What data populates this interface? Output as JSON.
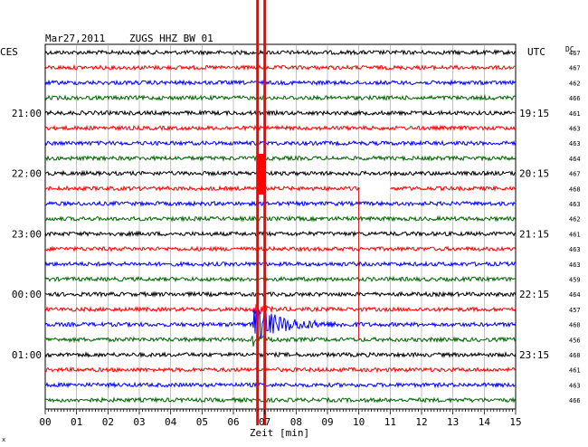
{
  "header": {
    "date": "Mar27,2011",
    "station": "ZUGS HHZ BW 01",
    "left_tz": "CES",
    "right_tz": "UTC",
    "dc_label": "DC"
  },
  "chart_data": {
    "type": "line",
    "title": "Mar27,2011   ZUGS HHZ BW 01",
    "xlabel": "Zeit [min]",
    "xlim": [
      0,
      15
    ],
    "x_ticks": [
      "00",
      "01",
      "02",
      "03",
      "04",
      "05",
      "06",
      "07",
      "08",
      "09",
      "10",
      "11",
      "12",
      "13",
      "14",
      "15"
    ],
    "grid": true,
    "left_time_labels": [
      {
        "trace": 4,
        "label": "21:00"
      },
      {
        "trace": 8,
        "label": "22:00"
      },
      {
        "trace": 12,
        "label": "23:00"
      },
      {
        "trace": 16,
        "label": "00:00"
      },
      {
        "trace": 20,
        "label": "01:00"
      }
    ],
    "right_time_labels": [
      {
        "trace": 4,
        "label": "19:15"
      },
      {
        "trace": 8,
        "label": "20:15"
      },
      {
        "trace": 12,
        "label": "21:15"
      },
      {
        "trace": 16,
        "label": "22:15"
      },
      {
        "trace": 20,
        "label": "23:15"
      }
    ],
    "trace_colors": [
      "#000000",
      "#ff0000",
      "#0000ff",
      "#006600"
    ],
    "dc_values": [
      "467",
      "467",
      "462",
      "466",
      "461",
      "463",
      "463",
      "464",
      "467",
      "468",
      "463",
      "462",
      "461",
      "463",
      "463",
      "459",
      "464",
      "457",
      "460",
      "456",
      "460",
      "461",
      "463",
      "466"
    ],
    "event": {
      "red_marker_minute": 6.9,
      "onset_trace": 18,
      "onset_minute": 6.6,
      "coda_end_minute": 10.2,
      "gap_trace": 9,
      "gap_minutes": [
        10.0,
        11.0
      ]
    }
  },
  "footer": {
    "corner_mark": "x"
  }
}
